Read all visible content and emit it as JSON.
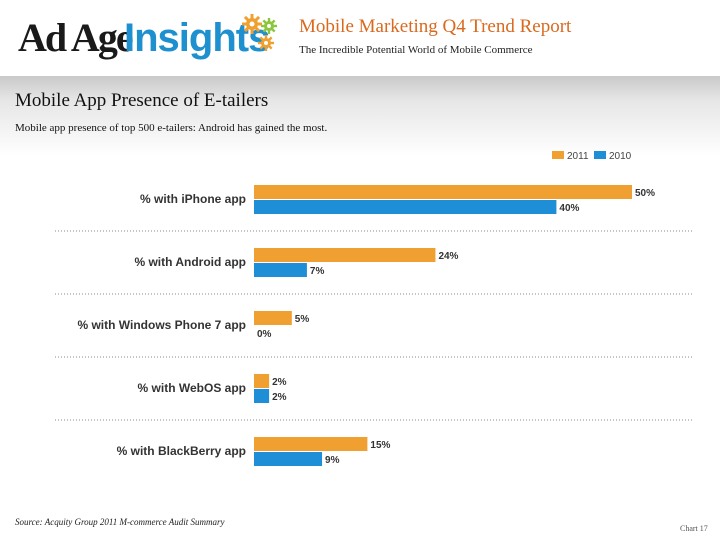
{
  "header": {
    "logo_adage": "Ad Age",
    "logo_insights": "Insights",
    "report_title": "Mobile Marketing Q4 Trend Report",
    "report_subtitle": "The Incredible Potential World of Mobile Commerce"
  },
  "section": {
    "title": "Mobile App Presence of E-tailers",
    "subtitle": "Mobile app presence of top 500 e-tailers: Android has gained the most."
  },
  "footer": {
    "source": "Source: Acquity Group 2011 M-commerce Audit Summary",
    "chart_number": "Chart 17"
  },
  "colors": {
    "series_2011": "#f0a030",
    "series_2010": "#1e8fd6",
    "accent_title": "#d9691e"
  },
  "chart_data": {
    "type": "bar",
    "orientation": "horizontal",
    "title": "Mobile App Presence of E-tailers",
    "categories": [
      "% with iPhone app",
      "% with Android app",
      "% with Windows Phone 7 app",
      "% with WebOS app",
      "% with BlackBerry app"
    ],
    "series": [
      {
        "name": "2011",
        "values": [
          50,
          24,
          5,
          2,
          15
        ],
        "labels": [
          "50%",
          "24%",
          "5%",
          "2%",
          "15%"
        ]
      },
      {
        "name": "2010",
        "values": [
          40,
          7,
          0,
          2,
          9
        ],
        "labels": [
          "40%",
          "7%",
          "0%",
          "2%",
          "9%"
        ]
      }
    ],
    "xlim": [
      0,
      50
    ],
    "grid": false,
    "legend_position": "top-right"
  }
}
